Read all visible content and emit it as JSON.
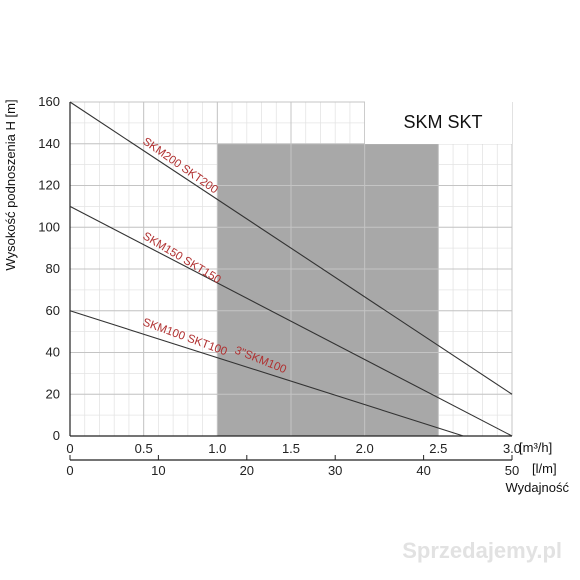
{
  "chart_data": {
    "type": "line",
    "title": "SKM SKT",
    "ylabel": "Wysokość podnoszenia H [m]",
    "xlabel_primary_unit": "[m³/h]",
    "xlabel_secondary_unit": "[l/m]",
    "xlabel": "Wydajność",
    "xlim": [
      0,
      3.0
    ],
    "ylim": [
      0,
      160
    ],
    "x_ticks": [
      "0",
      "0.5",
      "1.0",
      "1.5",
      "2.0",
      "2.5",
      "3.0"
    ],
    "x_secondary_ticks": [
      "0",
      "10",
      "20",
      "30",
      "40",
      "50"
    ],
    "y_ticks": [
      "0",
      "20",
      "40",
      "60",
      "80",
      "100",
      "120",
      "140",
      "160"
    ],
    "grid": true,
    "shaded_region": {
      "x": [
        1.0,
        2.5
      ],
      "y": [
        0,
        140
      ],
      "color": "#a8a8a8"
    },
    "series": [
      {
        "name": "SKM200 SKT200",
        "x": [
          0,
          3.0
        ],
        "y": [
          160,
          20
        ]
      },
      {
        "name": "SKM150 SKT150",
        "x": [
          0,
          3.0
        ],
        "y": [
          110,
          0
        ]
      },
      {
        "name": "SKM100 SKT100",
        "x": [
          0,
          2.67
        ],
        "y": [
          60,
          0
        ]
      }
    ],
    "annotations": [
      "3\"SKM100"
    ]
  },
  "watermark": "Sprzedajemy.pl",
  "colors": {
    "curve": "#333333",
    "label": "#b03030",
    "shade": "#a8a8a8"
  }
}
